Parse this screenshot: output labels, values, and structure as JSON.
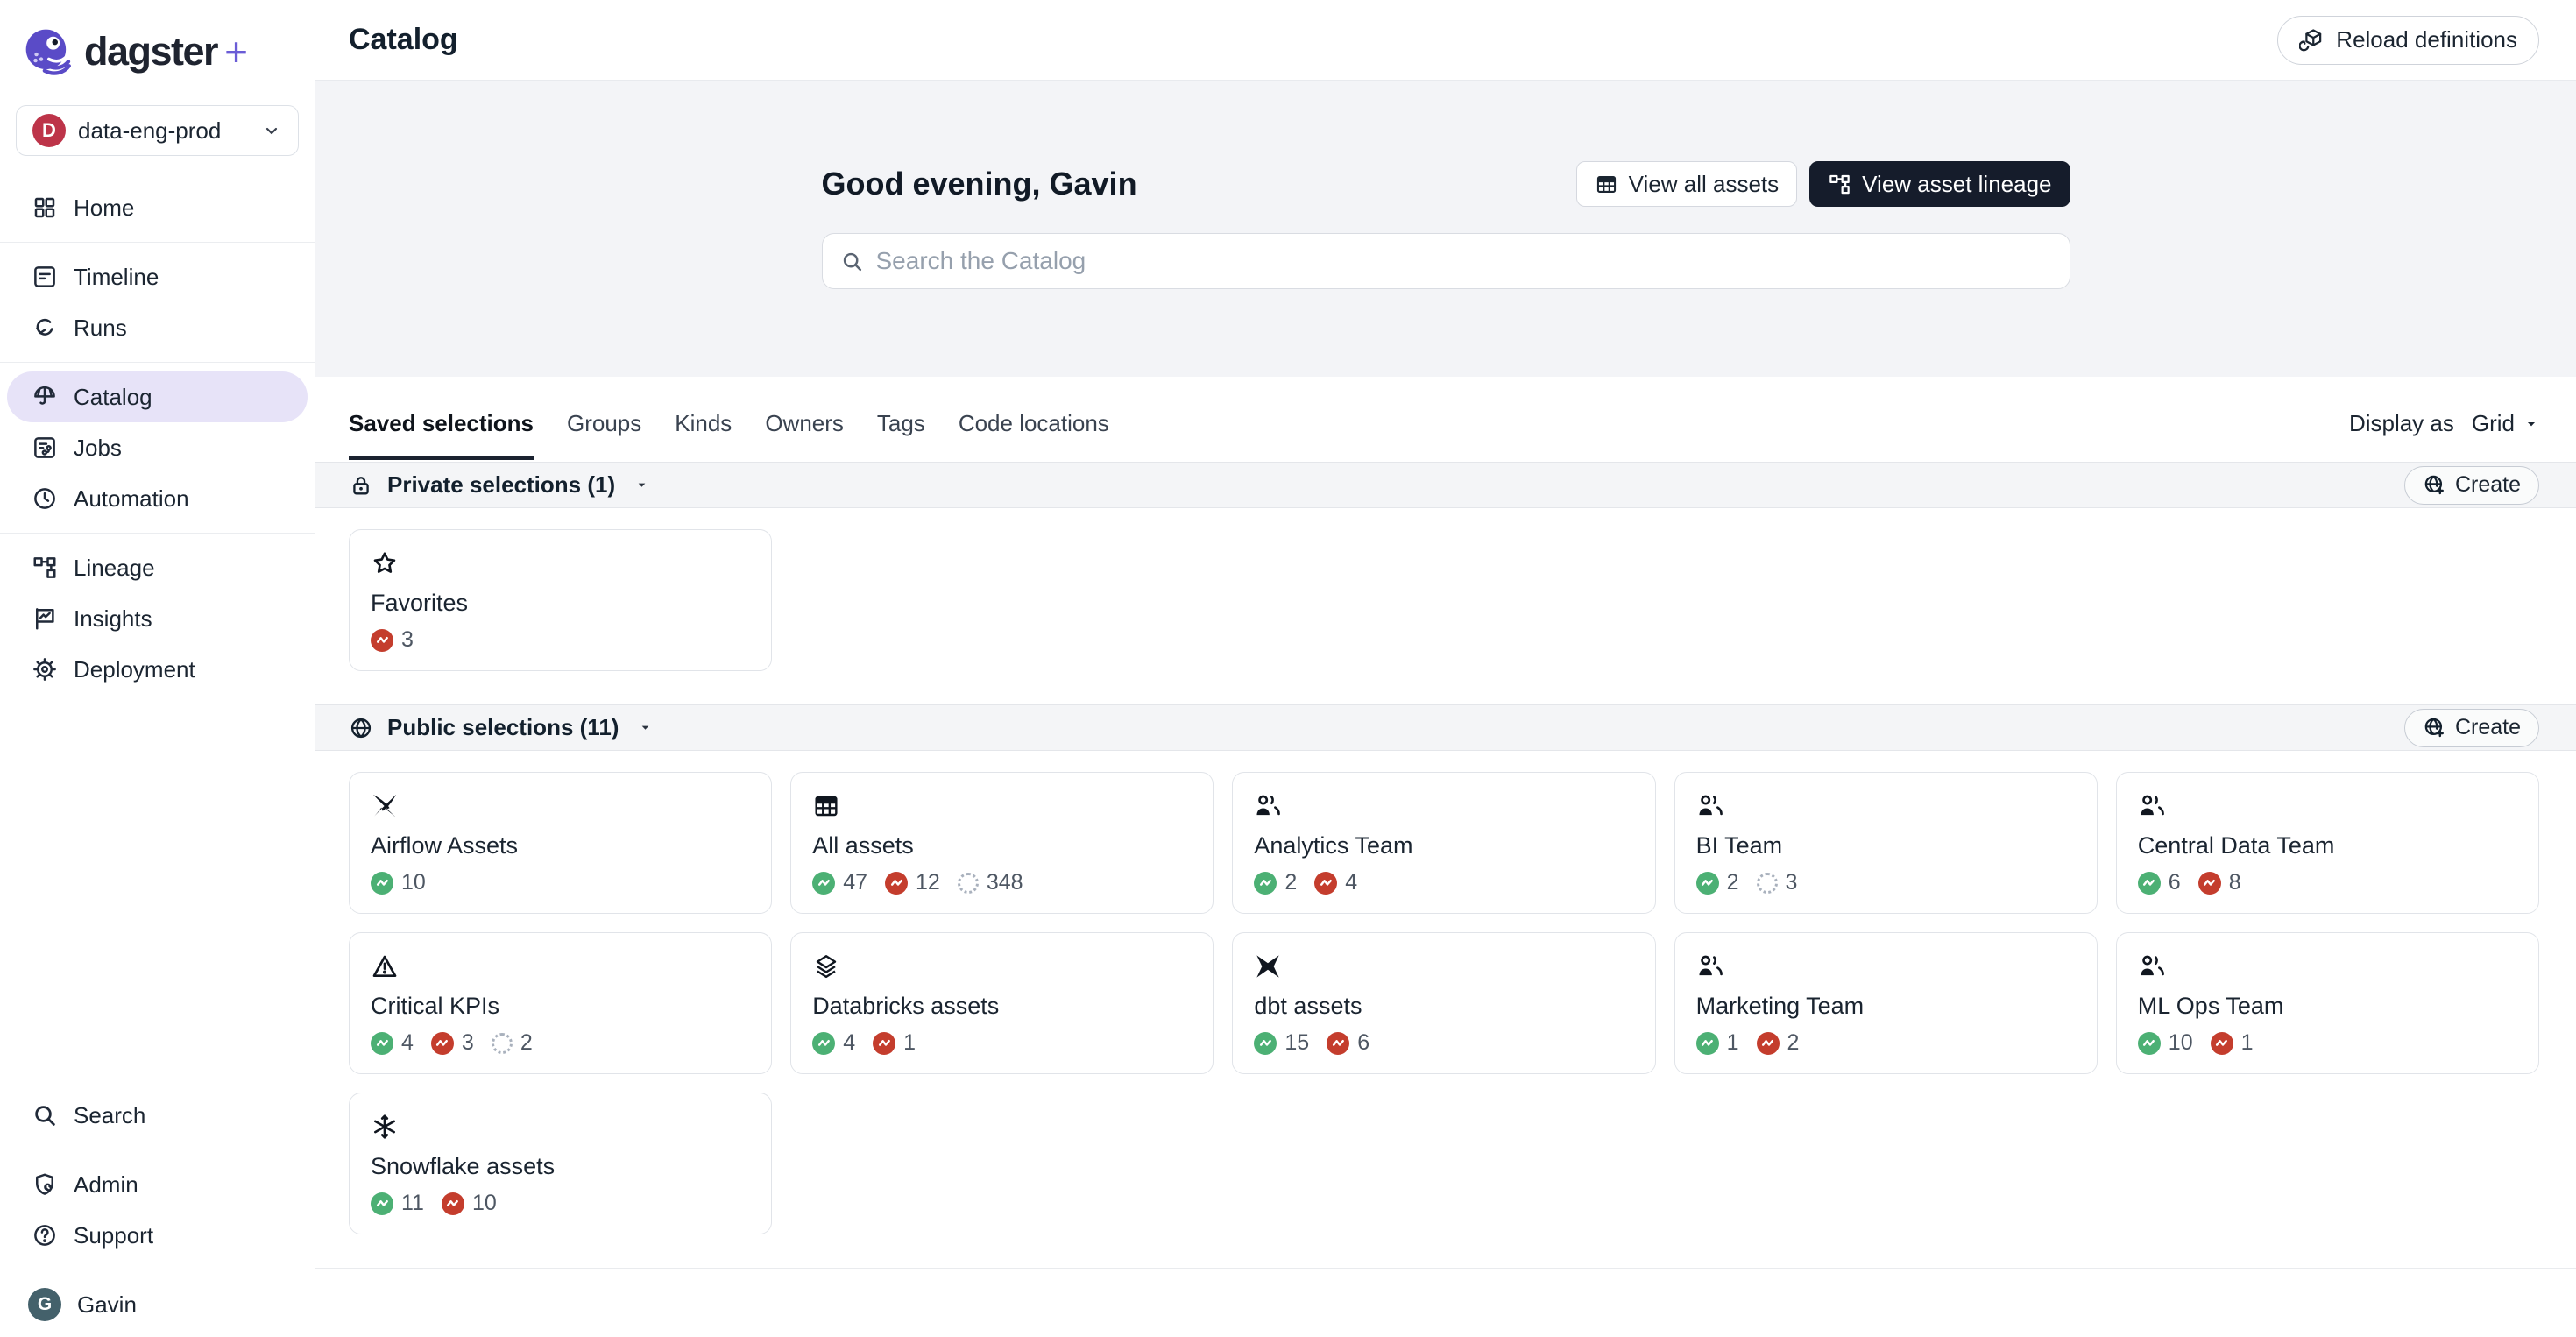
{
  "brand": {
    "name": "dagster",
    "plus": "+",
    "logo_icon": "dagster-logo-icon",
    "accent_purple": "#5A4BC7"
  },
  "deployment": {
    "initial": "D",
    "name": "data-eng-prod",
    "badge_color": "#BD3449",
    "chevron_icon": "chevron-down-icon"
  },
  "sidebar": {
    "groups": [
      {
        "items": [
          {
            "label": "Home",
            "icon": "home-icon"
          }
        ]
      },
      {
        "items": [
          {
            "label": "Timeline",
            "icon": "timeline-icon"
          },
          {
            "label": "Runs",
            "icon": "runs-icon"
          }
        ]
      },
      {
        "items": [
          {
            "label": "Catalog",
            "icon": "catalog-icon",
            "active": true
          },
          {
            "label": "Jobs",
            "icon": "jobs-icon"
          },
          {
            "label": "Automation",
            "icon": "automation-icon"
          }
        ]
      },
      {
        "items": [
          {
            "label": "Lineage",
            "icon": "lineage-icon"
          },
          {
            "label": "Insights",
            "icon": "insights-icon"
          },
          {
            "label": "Deployment",
            "icon": "deployment-icon"
          }
        ]
      }
    ],
    "bottom_groups": [
      {
        "items": [
          {
            "label": "Search",
            "icon": "search-icon"
          }
        ]
      },
      {
        "items": [
          {
            "label": "Admin",
            "icon": "admin-icon"
          },
          {
            "label": "Support",
            "icon": "support-icon"
          }
        ]
      }
    ],
    "user": {
      "initial": "G",
      "name": "Gavin",
      "avatar_color": "#44616B"
    },
    "selected_bg": "#E7E3F8"
  },
  "header": {
    "title": "Catalog",
    "reload_label": "Reload definitions",
    "reload_icon": "cube-reload-icon"
  },
  "hero": {
    "greeting": "Good evening, Gavin",
    "search_placeholder": "Search the Catalog",
    "search_icon": "search-icon",
    "buttons": [
      {
        "label": "View all assets",
        "icon": "table-icon",
        "variant": "outline"
      },
      {
        "label": "View asset lineage",
        "icon": "lineage-icon",
        "variant": "dark"
      }
    ],
    "dark_button_color": "#151C2B"
  },
  "tabs": {
    "items": [
      "Saved selections",
      "Groups",
      "Kinds",
      "Owners",
      "Tags",
      "Code locations"
    ],
    "active": "Saved selections",
    "display_as_label": "Display as",
    "display_as_value": "Grid",
    "display_caret_icon": "caret-down-icon"
  },
  "status_colors": {
    "materialized": "#4CB074",
    "failed": "#C43D2D",
    "missing_border": "#A9B1BD"
  },
  "sections": [
    {
      "id": "private",
      "icon": "lock-icon",
      "caret_icon": "caret-down-icon",
      "title": "Private selections (1)",
      "create_label": "Create",
      "create_icon": "globe-plus-icon",
      "cards": [
        {
          "title": "Favorites",
          "icon": "star-icon",
          "counts": [
            {
              "type": "failed",
              "value": "3"
            }
          ]
        }
      ]
    },
    {
      "id": "public",
      "icon": "globe-icon",
      "caret_icon": "caret-down-icon",
      "title": "Public selections (11)",
      "create_label": "Create",
      "create_icon": "globe-plus-icon",
      "cards": [
        {
          "title": "Airflow Assets",
          "icon": "airflow-icon",
          "counts": [
            {
              "type": "materialized",
              "value": "10"
            }
          ]
        },
        {
          "title": "All assets",
          "icon": "table-icon",
          "counts": [
            {
              "type": "materialized",
              "value": "47"
            },
            {
              "type": "failed",
              "value": "12"
            },
            {
              "type": "missing",
              "value": "348"
            }
          ]
        },
        {
          "title": "Analytics Team",
          "icon": "users-icon",
          "counts": [
            {
              "type": "materialized",
              "value": "2"
            },
            {
              "type": "failed",
              "value": "4"
            }
          ]
        },
        {
          "title": "BI Team",
          "icon": "users-icon",
          "counts": [
            {
              "type": "materialized",
              "value": "2"
            },
            {
              "type": "missing",
              "value": "3"
            }
          ]
        },
        {
          "title": "Central Data Team",
          "icon": "users-icon",
          "counts": [
            {
              "type": "materialized",
              "value": "6"
            },
            {
              "type": "failed",
              "value": "8"
            }
          ]
        },
        {
          "title": "Critical KPIs",
          "icon": "warning-icon",
          "counts": [
            {
              "type": "materialized",
              "value": "4"
            },
            {
              "type": "failed",
              "value": "3"
            },
            {
              "type": "missing",
              "value": "2"
            }
          ]
        },
        {
          "title": "Databricks assets",
          "icon": "layers-icon",
          "counts": [
            {
              "type": "materialized",
              "value": "4"
            },
            {
              "type": "failed",
              "value": "1"
            }
          ]
        },
        {
          "title": "dbt assets",
          "icon": "dbt-icon",
          "counts": [
            {
              "type": "materialized",
              "value": "15"
            },
            {
              "type": "failed",
              "value": "6"
            }
          ]
        },
        {
          "title": "Marketing Team",
          "icon": "users-icon",
          "counts": [
            {
              "type": "materialized",
              "value": "1"
            },
            {
              "type": "failed",
              "value": "2"
            }
          ]
        },
        {
          "title": "ML Ops Team",
          "icon": "users-icon",
          "counts": [
            {
              "type": "materialized",
              "value": "10"
            },
            {
              "type": "failed",
              "value": "1"
            }
          ]
        },
        {
          "title": "Snowflake assets",
          "icon": "snowflake-icon",
          "counts": [
            {
              "type": "materialized",
              "value": "11"
            },
            {
              "type": "failed",
              "value": "10"
            }
          ]
        }
      ]
    }
  ]
}
